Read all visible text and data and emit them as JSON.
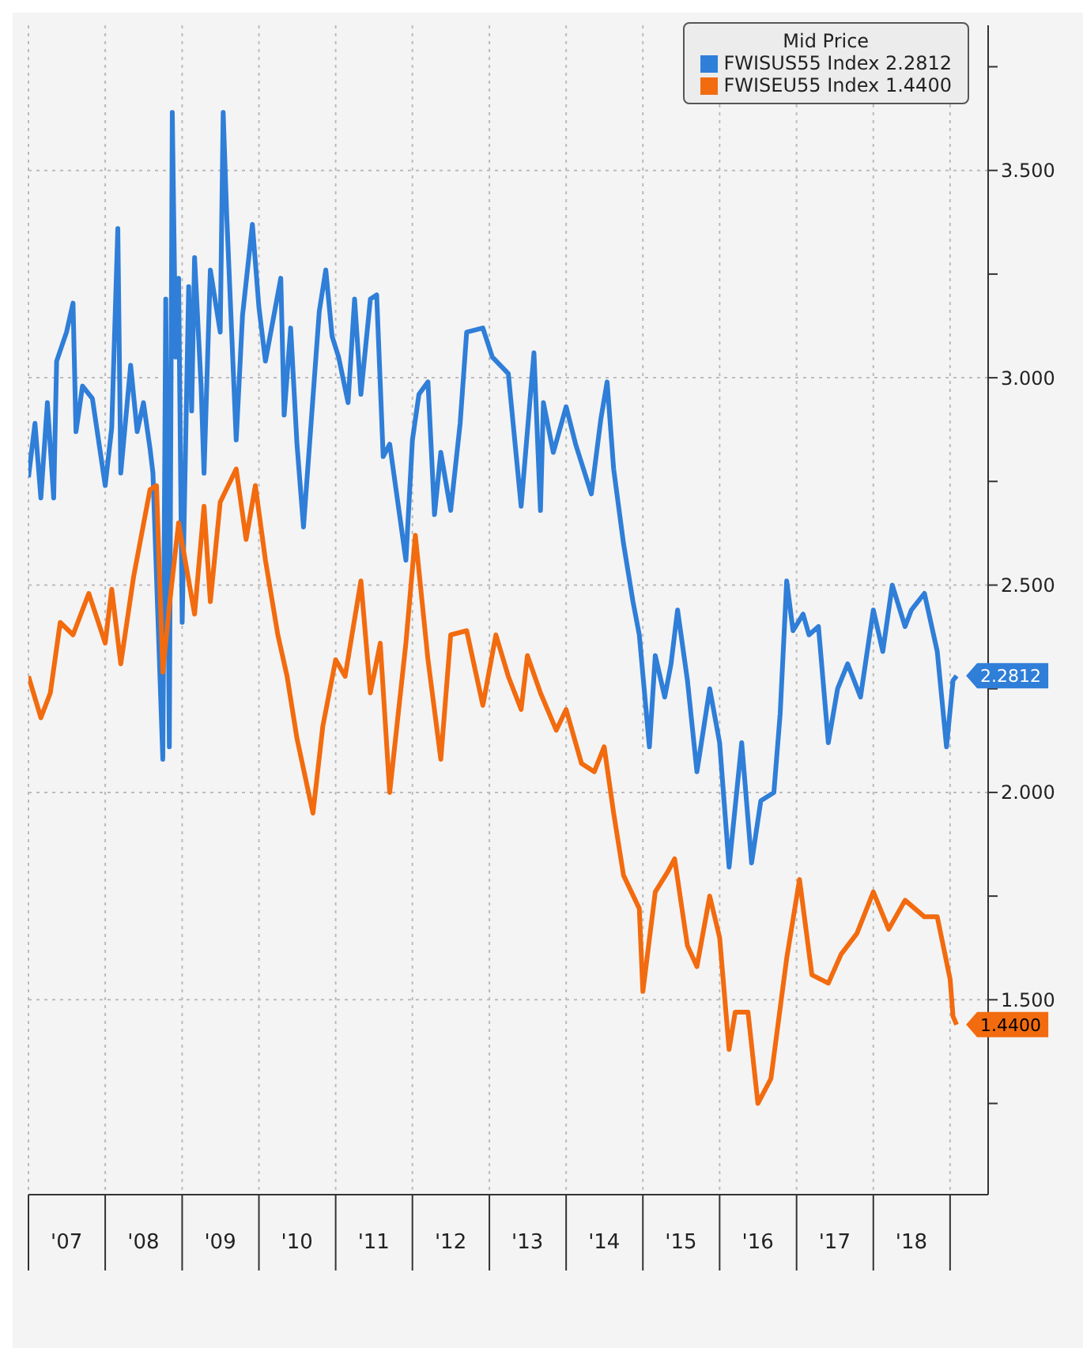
{
  "chart_data": {
    "type": "line",
    "legend_title": "Mid Price",
    "legend": "top right",
    "grid": true,
    "xlim": [
      "2007-01-01",
      "2019-07-01"
    ],
    "xticks": [
      {
        "value": "2007-01-01",
        "label": null
      },
      {
        "value": "2007-07-01",
        "label": "'07"
      },
      {
        "value": "2008-01-01",
        "label": null
      },
      {
        "value": "2008-07-01",
        "label": "'08"
      },
      {
        "value": "2009-01-01",
        "label": null
      },
      {
        "value": "2009-07-01",
        "label": "'09"
      },
      {
        "value": "2010-01-01",
        "label": null
      },
      {
        "value": "2010-07-01",
        "label": "'10"
      },
      {
        "value": "2011-01-01",
        "label": null
      },
      {
        "value": "2011-07-01",
        "label": "'11"
      },
      {
        "value": "2012-01-01",
        "label": null
      },
      {
        "value": "2012-07-01",
        "label": "'12"
      },
      {
        "value": "2013-01-01",
        "label": null
      },
      {
        "value": "2013-07-01",
        "label": "'13"
      },
      {
        "value": "2014-01-01",
        "label": null
      },
      {
        "value": "2014-07-01",
        "label": "'14"
      },
      {
        "value": "2015-01-01",
        "label": null
      },
      {
        "value": "2015-07-01",
        "label": "'15"
      },
      {
        "value": "2016-01-01",
        "label": null
      },
      {
        "value": "2016-07-01",
        "label": "'16"
      },
      {
        "value": "2017-01-01",
        "label": null
      },
      {
        "value": "2017-07-01",
        "label": "'17"
      },
      {
        "value": "2018-01-01",
        "label": null
      },
      {
        "value": "2018-07-01",
        "label": "'18"
      },
      {
        "value": "2019-01-01",
        "label": null
      }
    ],
    "ylim": [
      1.03,
      3.85
    ],
    "yticks": [
      {
        "value": 1.25,
        "label": null
      },
      {
        "value": 1.5,
        "label": "1.500"
      },
      {
        "value": 1.75,
        "label": null
      },
      {
        "value": 2,
        "label": "2.000"
      },
      {
        "value": 2.25,
        "label": null
      },
      {
        "value": 2.5,
        "label": "2.500"
      },
      {
        "value": 2.75,
        "label": null
      },
      {
        "value": 3,
        "label": "3.000"
      },
      {
        "value": 3.25,
        "label": null
      },
      {
        "value": 3.5,
        "label": "3.500"
      },
      {
        "value": 3.75,
        "label": null
      }
    ],
    "series": [
      {
        "name": "FWISUS55 Index 2.2812",
        "color": "#2f7ed8",
        "x": [
          "2007-01-01",
          "2007-02-01",
          "2007-03-01",
          "2007-04-01",
          "2007-05-01",
          "2007-05-15",
          "2007-07-01",
          "2007-08-01",
          "2007-08-15",
          "2007-09-15",
          "2007-11-01",
          "2008-01-01",
          "2008-02-01",
          "2008-03-01",
          "2008-03-15",
          "2008-05-01",
          "2008-06-01",
          "2008-07-01",
          "2008-08-01",
          "2008-08-15",
          "2008-10-01",
          "2008-10-15",
          "2008-11-01",
          "2008-11-15",
          "2008-12-01",
          "2008-12-15",
          "2009-01-01",
          "2009-02-01",
          "2009-02-15",
          "2009-03-01",
          "2009-04-01",
          "2009-04-15",
          "2009-05-15",
          "2009-07-01",
          "2009-07-15",
          "2009-08-01",
          "2009-09-15",
          "2009-10-15",
          "2009-12-01",
          "2010-01-01",
          "2010-02-01",
          "2010-04-15",
          "2010-05-01",
          "2010-06-01",
          "2010-07-01",
          "2010-08-01",
          "2010-10-15",
          "2010-11-15",
          "2010-12-15",
          "2011-01-15",
          "2011-03-01",
          "2011-04-01",
          "2011-05-01",
          "2011-06-15",
          "2011-07-15",
          "2011-08-15",
          "2011-09-15",
          "2011-12-01",
          "2012-01-01",
          "2012-02-01",
          "2012-03-15",
          "2012-04-15",
          "2012-05-15",
          "2012-07-01",
          "2012-08-15",
          "2012-09-15",
          "2012-12-01",
          "2013-01-15",
          "2013-04-01",
          "2013-06-01",
          "2013-08-01",
          "2013-09-01",
          "2013-09-15",
          "2013-11-01",
          "2014-01-01",
          "2014-02-15",
          "2014-05-01",
          "2014-06-15",
          "2014-07-15",
          "2014-08-15",
          "2014-10-01",
          "2014-11-15",
          "2014-12-15",
          "2015-02-01",
          "2015-03-01",
          "2015-04-15",
          "2015-05-15",
          "2015-06-15",
          "2015-08-01",
          "2015-09-15",
          "2015-11-15",
          "2016-01-01",
          "2016-02-15",
          "2016-04-15",
          "2016-06-01",
          "2016-07-15",
          "2016-09-15",
          "2016-10-15",
          "2016-11-15",
          "2016-12-15",
          "2017-02-01",
          "2017-03-01",
          "2017-04-15",
          "2017-06-01",
          "2017-07-15",
          "2017-09-01",
          "2017-11-01",
          "2018-01-01",
          "2018-02-15",
          "2018-04-01",
          "2018-06-01",
          "2018-07-01",
          "2018-09-01",
          "2018-11-01",
          "2018-12-15",
          "2019-01-15",
          "2019-02-01"
        ],
        "values": [
          2.76,
          2.89,
          2.71,
          2.94,
          2.71,
          3.04,
          3.11,
          3.18,
          2.87,
          2.98,
          2.95,
          2.74,
          2.88,
          3.36,
          2.77,
          3.03,
          2.87,
          2.94,
          2.83,
          2.77,
          2.08,
          3.19,
          2.11,
          3.64,
          3.05,
          3.24,
          2.41,
          3.22,
          2.92,
          3.29,
          2.98,
          2.77,
          3.26,
          3.11,
          3.64,
          3.39,
          2.85,
          3.15,
          3.37,
          3.17,
          3.04,
          3.24,
          2.91,
          3.12,
          2.84,
          2.64,
          3.16,
          3.26,
          3.1,
          3.05,
          2.94,
          3.19,
          2.96,
          3.19,
          3.2,
          2.81,
          2.84,
          2.56,
          2.85,
          2.96,
          2.99,
          2.67,
          2.82,
          2.68,
          2.89,
          3.11,
          3.12,
          3.05,
          3.01,
          2.69,
          3.06,
          2.68,
          2.94,
          2.82,
          2.93,
          2.84,
          2.72,
          2.9,
          2.99,
          2.78,
          2.6,
          2.46,
          2.38,
          2.11,
          2.33,
          2.23,
          2.31,
          2.44,
          2.27,
          2.05,
          2.25,
          2.12,
          1.82,
          2.12,
          1.83,
          1.98,
          2.0,
          2.19,
          2.51,
          2.39,
          2.43,
          2.38,
          2.4,
          2.12,
          2.25,
          2.31,
          2.23,
          2.44,
          2.34,
          2.5,
          2.4,
          2.44,
          2.48,
          2.34,
          2.11,
          2.27,
          2.2812
        ],
        "value_labels": [
          null,
          null,
          null,
          null,
          null,
          null,
          null,
          null,
          null,
          null,
          null,
          null,
          null,
          null,
          null,
          null,
          null,
          null,
          null,
          null,
          null,
          null,
          null,
          null,
          null,
          null,
          null,
          null,
          null,
          null,
          null,
          null,
          null,
          null,
          null,
          null,
          null,
          null,
          null,
          null,
          null,
          null,
          null,
          null,
          null,
          null,
          null,
          null,
          null,
          null,
          null,
          null,
          null,
          null,
          null,
          null,
          null,
          null,
          null,
          null,
          null,
          null,
          null,
          null,
          null,
          null,
          null,
          null,
          null,
          null,
          null,
          null,
          null,
          null,
          null,
          null,
          null,
          null,
          null,
          null,
          null,
          null,
          null,
          null,
          null,
          null,
          null,
          null,
          null,
          null,
          null,
          null,
          null,
          null,
          null,
          null,
          null,
          null,
          null,
          null,
          null,
          null,
          null,
          null,
          null,
          null,
          null,
          null,
          null,
          null,
          null,
          null,
          null,
          null,
          null,
          null,
          "2.2812"
        ]
      },
      {
        "name": "FWISEU55 Index 1.4400",
        "color": "#f26b0f",
        "x": [
          "2007-01-01",
          "2007-03-01",
          "2007-04-15",
          "2007-06-01",
          "2007-08-01",
          "2007-10-15",
          "2008-01-01",
          "2008-02-01",
          "2008-03-15",
          "2008-05-15",
          "2008-08-01",
          "2008-09-01",
          "2008-10-01",
          "2008-11-01",
          "2008-12-15",
          "2009-03-01",
          "2009-04-15",
          "2009-05-15",
          "2009-07-01",
          "2009-09-15",
          "2009-11-01",
          "2009-12-15",
          "2010-02-01",
          "2010-04-01",
          "2010-05-15",
          "2010-07-01",
          "2010-09-15",
          "2010-11-01",
          "2011-01-01",
          "2011-02-15",
          "2011-05-01",
          "2011-06-15",
          "2011-08-01",
          "2011-09-15",
          "2011-12-01",
          "2012-01-15",
          "2012-03-15",
          "2012-05-15",
          "2012-07-01",
          "2012-09-15",
          "2012-12-01",
          "2013-02-01",
          "2013-04-01",
          "2013-06-01",
          "2013-07-01",
          "2013-09-01",
          "2013-11-15",
          "2014-01-01",
          "2014-03-15",
          "2014-05-15",
          "2014-07-01",
          "2014-08-15",
          "2014-10-01",
          "2014-12-15",
          "2015-01-01",
          "2015-03-01",
          "2015-05-01",
          "2015-06-01",
          "2015-08-01",
          "2015-09-15",
          "2015-11-15",
          "2016-01-01",
          "2016-02-15",
          "2016-03-15",
          "2016-05-15",
          "2016-07-01",
          "2016-09-01",
          "2016-11-15",
          "2017-01-15",
          "2017-03-15",
          "2017-06-01",
          "2017-08-01",
          "2017-10-15",
          "2018-01-01",
          "2018-03-15",
          "2018-06-01",
          "2018-09-01",
          "2018-11-01",
          "2019-01-01",
          "2019-01-15",
          "2019-02-01"
        ],
        "values": [
          2.28,
          2.18,
          2.24,
          2.41,
          2.38,
          2.48,
          2.36,
          2.49,
          2.31,
          2.52,
          2.73,
          2.74,
          2.29,
          2.45,
          2.65,
          2.43,
          2.69,
          2.46,
          2.7,
          2.78,
          2.61,
          2.74,
          2.56,
          2.38,
          2.28,
          2.13,
          1.95,
          2.16,
          2.32,
          2.28,
          2.51,
          2.24,
          2.36,
          2.0,
          2.36,
          2.62,
          2.32,
          2.08,
          2.38,
          2.39,
          2.21,
          2.38,
          2.28,
          2.2,
          2.33,
          2.24,
          2.15,
          2.2,
          2.07,
          2.05,
          2.11,
          1.95,
          1.8,
          1.72,
          1.52,
          1.76,
          1.81,
          1.84,
          1.63,
          1.58,
          1.75,
          1.65,
          1.38,
          1.47,
          1.47,
          1.25,
          1.31,
          1.6,
          1.79,
          1.56,
          1.54,
          1.61,
          1.66,
          1.76,
          1.67,
          1.74,
          1.7,
          1.7,
          1.55,
          1.46,
          1.44
        ],
        "value_labels": [
          null,
          null,
          null,
          null,
          null,
          null,
          null,
          null,
          null,
          null,
          null,
          null,
          null,
          null,
          null,
          null,
          null,
          null,
          null,
          null,
          null,
          null,
          null,
          null,
          null,
          null,
          null,
          null,
          null,
          null,
          null,
          null,
          null,
          null,
          null,
          null,
          null,
          null,
          null,
          null,
          null,
          null,
          null,
          null,
          null,
          null,
          null,
          null,
          null,
          null,
          null,
          null,
          null,
          null,
          null,
          null,
          null,
          null,
          null,
          null,
          null,
          null,
          null,
          null,
          null,
          null,
          null,
          null,
          null,
          null,
          null,
          null,
          null,
          null,
          null,
          null,
          null,
          null,
          null,
          null,
          "1.4400"
        ]
      }
    ]
  }
}
